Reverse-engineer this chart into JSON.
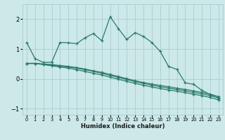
{
  "xlabel": "Humidex (Indice chaleur)",
  "bg_color": "#cce8e8",
  "grid_color": "#aacece",
  "line_color": "#2a7a6a",
  "xlim": [
    -0.5,
    23.5
  ],
  "ylim": [
    -1.2,
    2.5
  ],
  "xticks": [
    0,
    1,
    2,
    3,
    4,
    5,
    6,
    7,
    8,
    9,
    10,
    11,
    12,
    13,
    14,
    15,
    16,
    17,
    18,
    19,
    20,
    21,
    22,
    23
  ],
  "yticks": [
    -1,
    0,
    1,
    2
  ],
  "series": [
    [
      1.22,
      0.68,
      0.55,
      0.56,
      1.22,
      1.21,
      1.18,
      1.38,
      1.52,
      1.28,
      2.08,
      1.68,
      1.32,
      1.55,
      1.42,
      1.22,
      0.92,
      0.42,
      0.32,
      -0.13,
      -0.18,
      -0.38,
      -0.52,
      -0.65
    ],
    [
      0.52,
      0.52,
      0.5,
      0.48,
      0.45,
      0.42,
      0.38,
      0.33,
      0.27,
      0.22,
      0.15,
      0.08,
      0.01,
      -0.06,
      -0.12,
      -0.17,
      -0.22,
      -0.26,
      -0.31,
      -0.35,
      -0.4,
      -0.45,
      -0.51,
      -0.59
    ],
    [
      0.52,
      0.52,
      0.49,
      0.46,
      0.43,
      0.4,
      0.36,
      0.31,
      0.25,
      0.19,
      0.12,
      0.05,
      -0.02,
      -0.09,
      -0.15,
      -0.21,
      -0.26,
      -0.31,
      -0.35,
      -0.4,
      -0.45,
      -0.5,
      -0.56,
      -0.63
    ],
    [
      0.52,
      0.52,
      0.48,
      0.44,
      0.4,
      0.36,
      0.31,
      0.25,
      0.19,
      0.13,
      0.06,
      -0.01,
      -0.08,
      -0.15,
      -0.21,
      -0.27,
      -0.32,
      -0.37,
      -0.41,
      -0.46,
      -0.51,
      -0.56,
      -0.62,
      -0.7
    ]
  ]
}
